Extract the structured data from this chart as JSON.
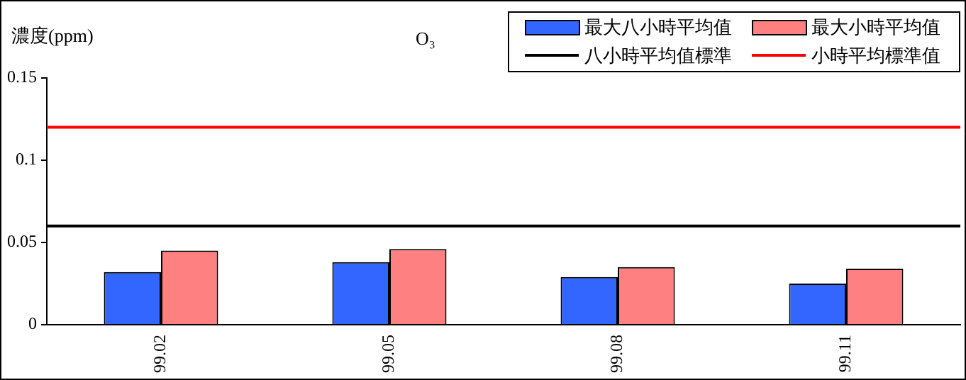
{
  "chart_data": {
    "type": "bar",
    "title": "O₃",
    "ylabel": "濃度(ppm)",
    "categories": [
      "99.02",
      "99.05",
      "99.08",
      "99.11"
    ],
    "series": [
      {
        "name": "最大八小時平均值",
        "color": "#3366ff",
        "values": [
          0.032,
          0.038,
          0.029,
          0.025
        ]
      },
      {
        "name": "最大小時平均值",
        "color": "#ff8080",
        "values": [
          0.045,
          0.046,
          0.035,
          0.034
        ]
      }
    ],
    "ref_lines": [
      {
        "axis": "y",
        "value": 0.06,
        "label": "八小時平均值標準",
        "color": "#000000"
      },
      {
        "axis": "y",
        "value": 0.12,
        "label": "小時平均標準值",
        "color": "#ff0000"
      }
    ],
    "ylim": [
      0,
      0.15
    ],
    "yticks": [
      0,
      0.05,
      {
        "value": 0.1,
        "label": "0.1"
      },
      0.15
    ],
    "grid": false,
    "legend": "top right"
  }
}
